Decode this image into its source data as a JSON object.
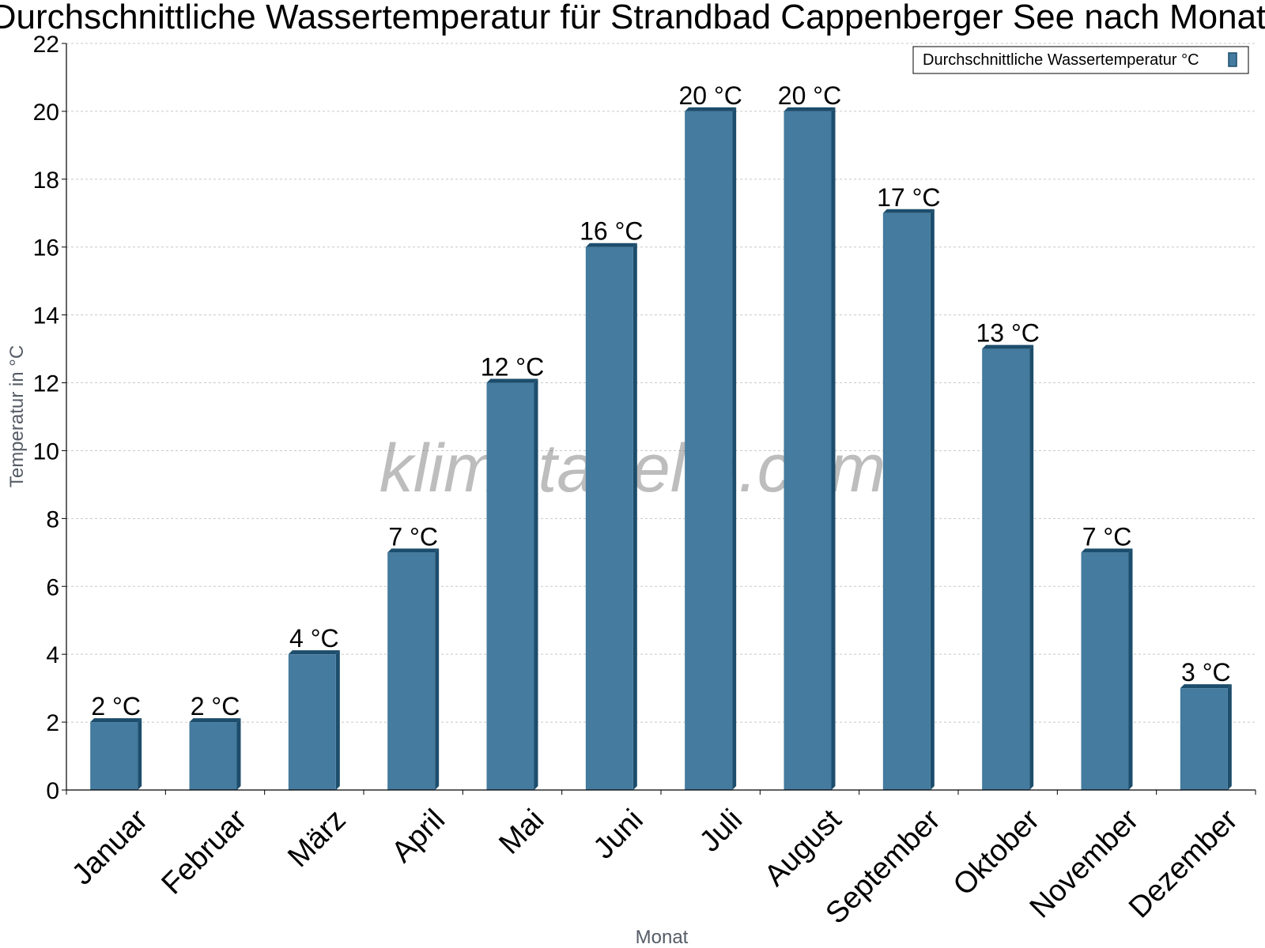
{
  "chart_data": {
    "type": "bar",
    "title": "Durchschnittliche Wassertemperatur für Strandbad Cappenberger See nach Monat",
    "xlabel": "Monat",
    "ylabel": "Temperatur in °C",
    "categories": [
      "Januar",
      "Februar",
      "März",
      "April",
      "Mai",
      "Juni",
      "Juli",
      "August",
      "September",
      "Oktober",
      "November",
      "Dezember"
    ],
    "series": [
      {
        "name": "Durchschnittliche Wassertemperatur °C",
        "values": [
          2,
          2,
          4,
          7,
          12,
          16,
          20,
          20,
          17,
          13,
          7,
          3
        ],
        "data_labels": [
          "2 °C",
          "2 °C",
          "4 °C",
          "7 °C",
          "12 °C",
          "16 °C",
          "20 °C",
          "20 °C",
          "17 °C",
          "13 °C",
          "7 °C",
          "3 °C"
        ]
      }
    ],
    "ylim": [
      0,
      22
    ],
    "yticks": [
      0,
      2,
      4,
      6,
      8,
      10,
      12,
      14,
      16,
      18,
      20,
      22
    ],
    "grid": true,
    "legend_position": "top-right",
    "colors": {
      "bar": "#447b9e",
      "bar_shade": "#1d4d6c",
      "grid": "#c8c8c8",
      "axis": "#000000"
    }
  },
  "watermark": "klimatabelle.com"
}
